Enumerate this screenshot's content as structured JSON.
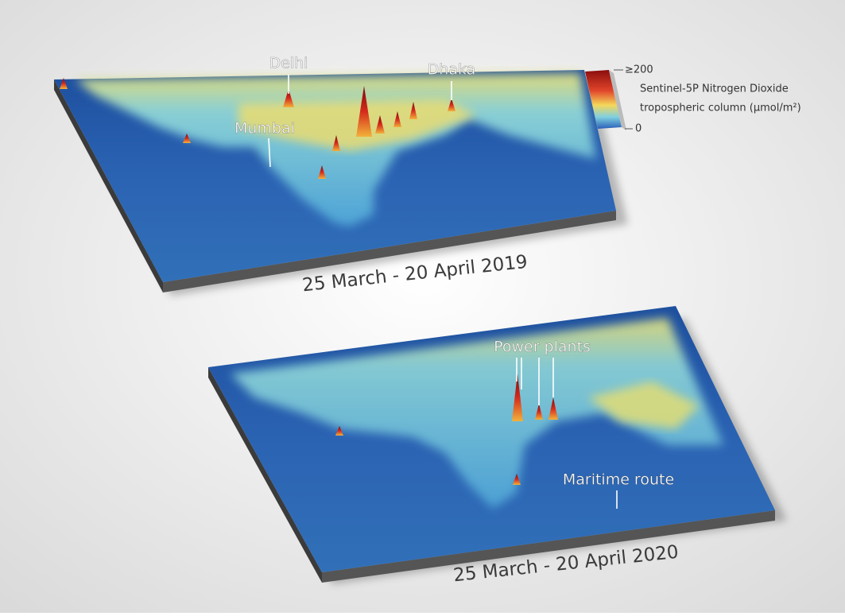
{
  "maps": [
    {
      "caption": "25 March - 20 April 2019",
      "labels": [
        "Delhi",
        "Dhaka",
        "Mumbai"
      ]
    },
    {
      "caption": "25 March - 20 April 2020",
      "labels": [
        "Power plants",
        "Maritime route"
      ]
    }
  ],
  "legend": {
    "max_label": "≥200",
    "min_label": "0",
    "title_lines": [
      "Sentinel-5P Nitrogen Dioxide",
      "tropospheric column (µmol/m²)"
    ]
  }
}
